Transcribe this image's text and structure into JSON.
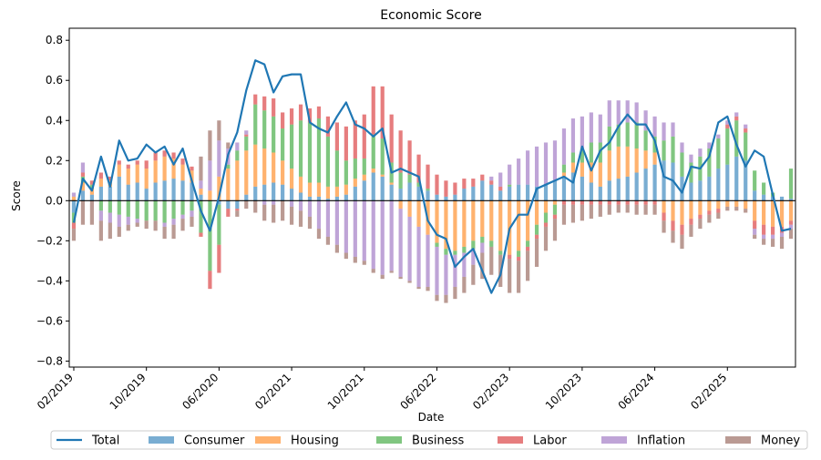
{
  "chart_data": {
    "type": "bar",
    "stacked": true,
    "title": "Economic Score",
    "xlabel": "Date",
    "ylabel": "Score",
    "ylim": [
      -0.83,
      0.86
    ],
    "yticks": [
      -0.8,
      -0.6,
      -0.4,
      -0.2,
      0.0,
      0.2,
      0.4,
      0.6,
      0.8
    ],
    "ytick_labels": [
      "−0.8",
      "−0.6",
      "−0.4",
      "−0.2",
      "0.0",
      "0.2",
      "0.4",
      "0.6",
      "0.8"
    ],
    "xtick_labels": [
      {
        "index": 0,
        "label": "02/2019"
      },
      {
        "index": 8,
        "label": "10/2019"
      },
      {
        "index": 16,
        "label": "06/2020"
      },
      {
        "index": 24,
        "label": "02/2021"
      },
      {
        "index": 32,
        "label": "10/2021"
      },
      {
        "index": 40,
        "label": "06/2022"
      },
      {
        "index": 48,
        "label": "02/2023"
      },
      {
        "index": 56,
        "label": "10/2023"
      },
      {
        "index": 64,
        "label": "06/2024"
      },
      {
        "index": 72,
        "label": "02/2025"
      }
    ],
    "legend": [
      "Total",
      "Consumer",
      "Housing",
      "Business",
      "Labor",
      "Inflation",
      "Money"
    ],
    "legend_position": "bottom",
    "colors": {
      "Total": "#1f77b4",
      "Consumer": "#1f77b4",
      "Housing": "#ff7f0e",
      "Business": "#2ca02c",
      "Labor": "#d62728",
      "Inflation": "#9467bd",
      "Money": "#8c564b"
    },
    "bar_opacity": 0.6,
    "n_periods": 80,
    "series": [
      {
        "name": "Consumer",
        "values": [
          -0.06,
          0.05,
          0.03,
          0.07,
          0.07,
          0.12,
          0.08,
          0.09,
          0.06,
          0.09,
          0.1,
          0.11,
          0.1,
          0.09,
          0.03,
          0.0,
          -0.02,
          -0.04,
          -0.04,
          0.03,
          0.07,
          0.08,
          0.09,
          0.08,
          0.06,
          0.04,
          0.02,
          0.02,
          0.01,
          0.02,
          0.03,
          0.07,
          0.1,
          0.14,
          0.12,
          0.08,
          0.06,
          0.09,
          0.07,
          0.05,
          0.03,
          0.02,
          0.03,
          0.06,
          0.07,
          0.1,
          0.08,
          0.05,
          0.07,
          0.08,
          0.08,
          0.07,
          0.08,
          0.1,
          0.12,
          0.14,
          0.12,
          0.09,
          0.07,
          0.1,
          0.11,
          0.12,
          0.14,
          0.16,
          0.18,
          0.2,
          0.19,
          0.12,
          0.09,
          0.1,
          0.12,
          0.16,
          0.18,
          0.22,
          0.2,
          0.05,
          0.03,
          0.02,
          0.02,
          0.01
        ]
      },
      {
        "name": "Housing",
        "values": [
          0.02,
          0.04,
          0.03,
          0.04,
          0.03,
          0.06,
          0.08,
          0.09,
          0.1,
          0.11,
          0.12,
          0.1,
          0.08,
          0.06,
          0.03,
          0.05,
          0.12,
          0.16,
          0.2,
          0.22,
          0.21,
          0.18,
          0.15,
          0.12,
          0.1,
          0.08,
          0.07,
          0.07,
          0.06,
          0.05,
          0.05,
          0.04,
          0.03,
          0.02,
          0.01,
          0.01,
          -0.04,
          -0.08,
          -0.13,
          -0.17,
          -0.21,
          -0.24,
          -0.25,
          -0.23,
          -0.2,
          -0.18,
          -0.2,
          -0.25,
          -0.27,
          -0.25,
          -0.2,
          -0.12,
          -0.06,
          -0.02,
          0.02,
          0.05,
          0.07,
          0.1,
          0.12,
          0.15,
          0.16,
          0.15,
          0.12,
          0.09,
          0.06,
          -0.06,
          -0.1,
          -0.12,
          -0.09,
          -0.07,
          -0.05,
          -0.04,
          -0.03,
          -0.03,
          -0.04,
          -0.1,
          -0.12,
          -0.13,
          -0.13,
          -0.1
        ]
      },
      {
        "name": "Business",
        "values": [
          -0.05,
          0.03,
          0.02,
          -0.05,
          -0.06,
          -0.07,
          -0.08,
          -0.09,
          -0.1,
          -0.1,
          -0.11,
          -0.09,
          -0.07,
          -0.05,
          -0.16,
          -0.35,
          -0.2,
          0.02,
          0.05,
          0.07,
          0.2,
          0.19,
          0.18,
          0.16,
          0.22,
          0.28,
          0.3,
          0.32,
          0.25,
          0.18,
          0.12,
          0.1,
          0.08,
          0.17,
          0.18,
          0.1,
          0.08,
          0.04,
          0.02,
          0.01,
          -0.02,
          -0.03,
          -0.02,
          -0.03,
          -0.04,
          -0.03,
          -0.03,
          -0.02,
          0.01,
          -0.03,
          -0.03,
          -0.05,
          -0.05,
          -0.05,
          0.04,
          0.05,
          0.07,
          0.1,
          0.1,
          0.12,
          0.11,
          0.12,
          0.13,
          0.1,
          0.08,
          0.1,
          0.13,
          0.12,
          0.1,
          0.12,
          0.14,
          0.15,
          0.18,
          0.18,
          0.14,
          0.1,
          0.06,
          0.02,
          0.0,
          0.15
        ]
      },
      {
        "name": "Labor",
        "values": [
          -0.03,
          0.02,
          0.02,
          0.03,
          0.02,
          0.02,
          0.02,
          0.02,
          0.04,
          0.04,
          0.03,
          0.03,
          0.03,
          0.02,
          -0.02,
          -0.09,
          -0.14,
          -0.04,
          -0.01,
          0.01,
          0.05,
          0.07,
          0.09,
          0.08,
          0.08,
          0.08,
          0.07,
          0.06,
          0.1,
          0.14,
          0.17,
          0.19,
          0.22,
          0.24,
          0.26,
          0.24,
          0.21,
          0.17,
          0.14,
          0.12,
          0.1,
          0.08,
          0.06,
          0.05,
          0.04,
          0.03,
          0.02,
          0.02,
          -0.02,
          -0.02,
          -0.02,
          -0.02,
          -0.02,
          -0.02,
          -0.02,
          -0.02,
          -0.02,
          -0.02,
          -0.02,
          -0.02,
          -0.02,
          -0.02,
          -0.02,
          -0.02,
          -0.02,
          -0.04,
          -0.05,
          -0.05,
          -0.03,
          -0.02,
          -0.02,
          -0.02,
          0.02,
          0.02,
          0.02,
          -0.04,
          -0.05,
          -0.04,
          -0.03,
          -0.02
        ]
      },
      {
        "name": "Inflation",
        "values": [
          0.02,
          0.05,
          0.0,
          -0.05,
          -0.05,
          -0.06,
          -0.04,
          -0.02,
          0.0,
          0.0,
          -0.02,
          -0.03,
          -0.02,
          -0.03,
          0.04,
          0.15,
          0.18,
          0.08,
          0.04,
          0.02,
          0.0,
          -0.02,
          -0.02,
          0.0,
          -0.03,
          -0.05,
          -0.08,
          -0.14,
          -0.18,
          -0.22,
          -0.26,
          -0.28,
          -0.3,
          -0.34,
          -0.37,
          -0.35,
          -0.34,
          -0.32,
          -0.3,
          -0.26,
          -0.24,
          -0.2,
          -0.16,
          -0.12,
          -0.08,
          -0.05,
          0.02,
          0.07,
          0.1,
          0.13,
          0.17,
          0.2,
          0.21,
          0.2,
          0.18,
          0.17,
          0.16,
          0.15,
          0.14,
          0.13,
          0.12,
          0.11,
          0.1,
          0.1,
          0.1,
          0.09,
          0.07,
          0.05,
          0.04,
          0.04,
          0.03,
          0.02,
          0.02,
          0.02,
          0.02,
          -0.03,
          -0.02,
          -0.02,
          -0.02,
          -0.02
        ]
      },
      {
        "name": "Money",
        "values": [
          -0.06,
          -0.12,
          -0.12,
          -0.1,
          -0.08,
          -0.05,
          -0.03,
          -0.02,
          -0.04,
          -0.05,
          -0.06,
          -0.07,
          -0.06,
          -0.05,
          0.12,
          0.15,
          0.1,
          0.03,
          -0.03,
          -0.04,
          -0.06,
          -0.08,
          -0.09,
          -0.1,
          -0.09,
          -0.08,
          -0.06,
          -0.05,
          -0.04,
          -0.04,
          -0.03,
          -0.03,
          -0.02,
          -0.02,
          -0.02,
          -0.01,
          -0.01,
          -0.01,
          -0.01,
          -0.02,
          -0.03,
          -0.04,
          -0.06,
          -0.08,
          -0.1,
          -0.13,
          -0.14,
          -0.16,
          -0.17,
          -0.16,
          -0.15,
          -0.14,
          -0.12,
          -0.11,
          -0.1,
          -0.09,
          -0.08,
          -0.07,
          -0.06,
          -0.05,
          -0.04,
          -0.04,
          -0.05,
          -0.05,
          -0.05,
          -0.06,
          -0.06,
          -0.07,
          -0.06,
          -0.05,
          -0.04,
          -0.03,
          -0.02,
          -0.02,
          -0.02,
          -0.02,
          -0.03,
          -0.04,
          -0.06,
          -0.05
        ]
      }
    ],
    "total": {
      "name": "Total",
      "values": [
        -0.11,
        0.11,
        0.05,
        0.22,
        0.07,
        0.3,
        0.2,
        0.21,
        0.28,
        0.24,
        0.27,
        0.18,
        0.26,
        0.1,
        -0.05,
        -0.15,
        0.02,
        0.23,
        0.34,
        0.55,
        0.7,
        0.68,
        0.54,
        0.62,
        0.63,
        0.63,
        0.39,
        0.36,
        0.34,
        0.42,
        0.49,
        0.38,
        0.36,
        0.32,
        0.36,
        0.14,
        0.16,
        0.14,
        0.12,
        -0.1,
        -0.17,
        -0.19,
        -0.33,
        -0.28,
        -0.24,
        -0.35,
        -0.46,
        -0.37,
        -0.14,
        -0.07,
        -0.07,
        0.06,
        0.08,
        0.1,
        0.12,
        0.09,
        0.27,
        0.15,
        0.25,
        0.29,
        0.37,
        0.43,
        0.38,
        0.38,
        0.3,
        0.12,
        0.1,
        0.04,
        0.17,
        0.16,
        0.22,
        0.39,
        0.42,
        0.28,
        0.17,
        0.25,
        0.22,
        0.03,
        -0.15,
        -0.14
      ]
    }
  }
}
